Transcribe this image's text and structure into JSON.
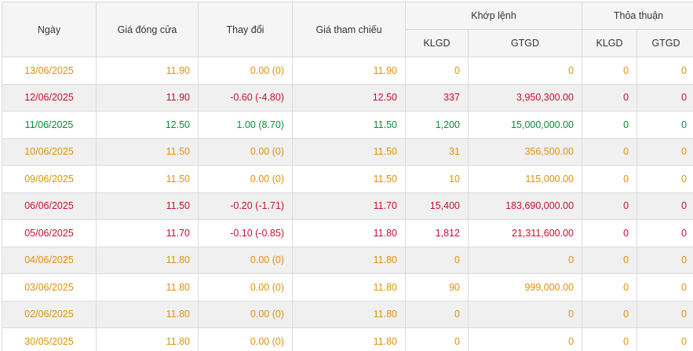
{
  "table": {
    "headers": {
      "date": "Ngày",
      "close": "Giá đóng cửa",
      "change": "Thay đổi",
      "reference": "Giá tham chiếu",
      "matched_group": "Khớp lệnh",
      "negotiated_group": "Thỏa thuận",
      "matched_klgd": "KLGD",
      "matched_gtgd": "GTGD",
      "negotiated_klgd": "KLGD",
      "negotiated_gtgd": "GTGD"
    },
    "status_colors": {
      "ref": "#e0920b",
      "down": "#c8102e",
      "up": "#0f8a3c"
    },
    "rows": [
      {
        "date": "13/06/2025",
        "close": "11.90",
        "change": "0.00 (0)",
        "reference": "11.90",
        "matched_klgd": "0",
        "matched_gtgd": "0",
        "negotiated_klgd": "0",
        "negotiated_gtgd": "0",
        "status": "ref"
      },
      {
        "date": "12/06/2025",
        "close": "11.90",
        "change": "-0.60 (-4.80)",
        "reference": "12.50",
        "matched_klgd": "337",
        "matched_gtgd": "3,950,300.00",
        "negotiated_klgd": "0",
        "negotiated_gtgd": "0",
        "status": "down"
      },
      {
        "date": "11/06/2025",
        "close": "12.50",
        "change": "1.00 (8.70)",
        "reference": "11.50",
        "matched_klgd": "1,200",
        "matched_gtgd": "15,000,000.00",
        "negotiated_klgd": "0",
        "negotiated_gtgd": "0",
        "status": "up"
      },
      {
        "date": "10/06/2025",
        "close": "11.50",
        "change": "0.00 (0)",
        "reference": "11.50",
        "matched_klgd": "31",
        "matched_gtgd": "356,500.00",
        "negotiated_klgd": "0",
        "negotiated_gtgd": "0",
        "status": "ref"
      },
      {
        "date": "09/06/2025",
        "close": "11.50",
        "change": "0.00 (0)",
        "reference": "11.50",
        "matched_klgd": "10",
        "matched_gtgd": "115,000.00",
        "negotiated_klgd": "0",
        "negotiated_gtgd": "0",
        "status": "ref"
      },
      {
        "date": "06/06/2025",
        "close": "11.50",
        "change": "-0.20 (-1.71)",
        "reference": "11.70",
        "matched_klgd": "15,400",
        "matched_gtgd": "183,690,000.00",
        "negotiated_klgd": "0",
        "negotiated_gtgd": "0",
        "status": "down"
      },
      {
        "date": "05/06/2025",
        "close": "11.70",
        "change": "-0.10 (-0.85)",
        "reference": "11.80",
        "matched_klgd": "1,812",
        "matched_gtgd": "21,311,600.00",
        "negotiated_klgd": "0",
        "negotiated_gtgd": "0",
        "status": "down"
      },
      {
        "date": "04/06/2025",
        "close": "11.80",
        "change": "0.00 (0)",
        "reference": "11.80",
        "matched_klgd": "0",
        "matched_gtgd": "0",
        "negotiated_klgd": "0",
        "negotiated_gtgd": "0",
        "status": "ref"
      },
      {
        "date": "03/06/2025",
        "close": "11.80",
        "change": "0.00 (0)",
        "reference": "11.80",
        "matched_klgd": "90",
        "matched_gtgd": "999,000.00",
        "negotiated_klgd": "0",
        "negotiated_gtgd": "0",
        "status": "ref"
      },
      {
        "date": "02/06/2025",
        "close": "11.80",
        "change": "0.00 (0)",
        "reference": "11.80",
        "matched_klgd": "0",
        "matched_gtgd": "0",
        "negotiated_klgd": "0",
        "negotiated_gtgd": "0",
        "status": "ref"
      },
      {
        "date": "30/05/2025",
        "close": "11.80",
        "change": "0.00 (0)",
        "reference": "11.80",
        "matched_klgd": "0",
        "matched_gtgd": "0",
        "negotiated_klgd": "0",
        "negotiated_gtgd": "0",
        "status": "ref"
      }
    ]
  }
}
